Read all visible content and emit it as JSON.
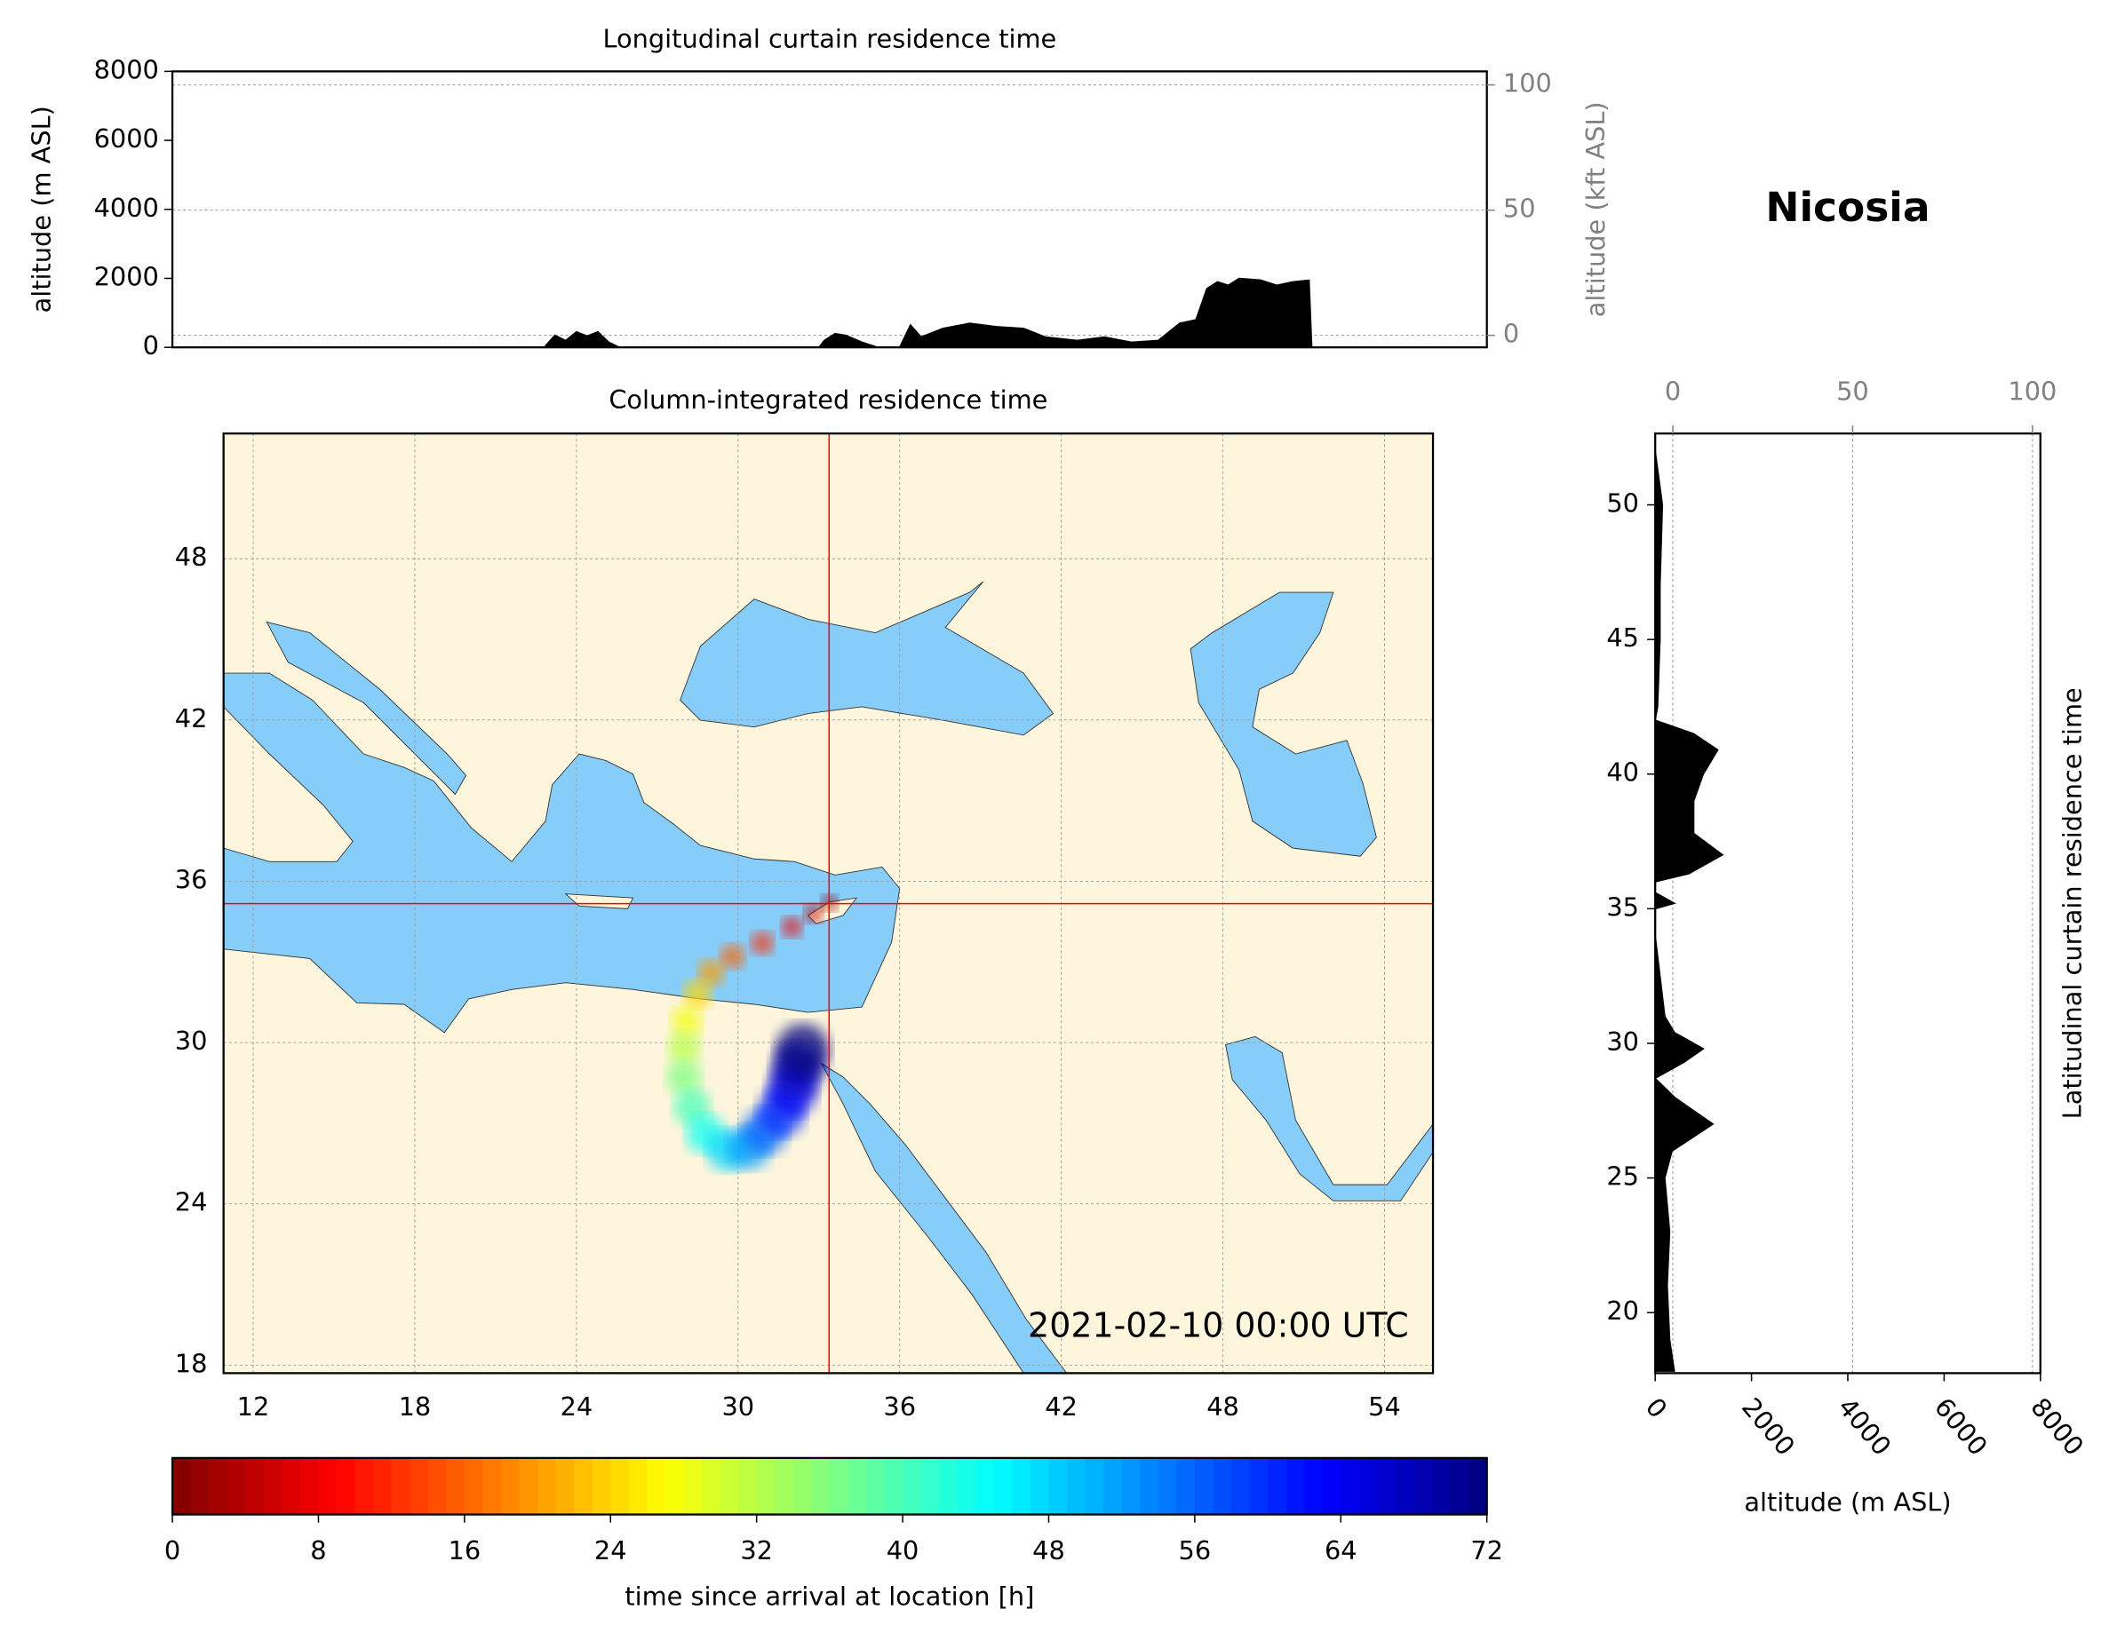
{
  "title": "Nicosia",
  "chart_data": [
    {
      "type": "area",
      "title": "Longitudinal curtain residence time",
      "y_label": "altitude (m ASL)",
      "y2_label": "altitude (kft ASL)",
      "xlim": [
        9,
        57.8
      ],
      "ylim": [
        0,
        8000
      ],
      "yticks": [
        0,
        2000,
        4000,
        6000,
        8000
      ],
      "y2lim": [
        -4.8,
        105.4
      ],
      "y2ticks": [
        0,
        50,
        100
      ],
      "grid": true,
      "x": [
        22.8,
        23.2,
        23.6,
        24,
        24.4,
        24.8,
        25.2,
        25.6,
        33,
        33.2,
        33.6,
        34,
        34.6,
        35.2,
        36,
        36.4,
        36.8,
        37.6,
        38.6,
        39.6,
        40.6,
        41.4,
        42.6,
        43.6,
        44.6,
        45.6,
        46.4,
        47,
        47.4,
        47.8,
        48.2,
        48.6,
        49.4,
        50,
        50.6,
        51.2,
        51.3
      ],
      "series": [
        {
          "color": "#000000",
          "values": [
            0,
            350,
            200,
            450,
            330,
            450,
            150,
            0,
            0,
            200,
            400,
            350,
            150,
            0,
            0,
            650,
            300,
            550,
            700,
            600,
            550,
            300,
            200,
            300,
            150,
            200,
            700,
            800,
            1700,
            1900,
            1800,
            2000,
            1950,
            1800,
            1900,
            1950,
            0
          ]
        }
      ]
    },
    {
      "type": "map",
      "title": "Column-integrated residence time",
      "xlim": [
        10.9,
        55.8
      ],
      "ylim": [
        17.7,
        52.66
      ],
      "xticks": [
        12,
        18,
        24,
        30,
        36,
        42,
        48,
        54
      ],
      "yticks": [
        18,
        24,
        30,
        36,
        42,
        48
      ],
      "grid": true,
      "annotation": "2021-02-10 00:00 UTC",
      "location": {
        "x": 33.38,
        "y": 35.17,
        "color": "#ff0000"
      },
      "x": [
        33.4,
        32.8,
        32.0,
        30.9,
        29.8,
        29.0,
        28.5,
        28.1,
        28.0,
        28.0,
        28.3,
        28.8,
        29.6,
        30.4,
        31.0,
        31.6,
        32.0,
        32.2,
        32.4
      ],
      "y": [
        35.2,
        34.8,
        34.3,
        33.7,
        33.2,
        32.6,
        31.8,
        30.8,
        29.8,
        28.7,
        27.6,
        26.6,
        26.0,
        26.1,
        26.7,
        27.4,
        28.2,
        29.0,
        29.7
      ],
      "values": [
        0,
        4,
        8,
        12,
        16,
        20,
        24,
        28,
        32,
        36,
        40,
        44,
        48,
        52,
        56,
        60,
        64,
        68,
        72
      ]
    },
    {
      "type": "area_h",
      "title": "Latitudinal curtain residence time",
      "x_label": "altitude (m ASL)",
      "xlim": [
        0,
        8000
      ],
      "xticks": [
        0,
        2000,
        4000,
        6000,
        8000
      ],
      "x2lim": [
        -4.9,
        102.2
      ],
      "x2ticks": [
        0,
        50,
        100
      ],
      "grid": true,
      "ylim": [
        17.75,
        52.65
      ],
      "yticks": [
        20,
        25,
        30,
        35,
        40,
        45,
        50
      ],
      "y": [
        17.8,
        19,
        21,
        23,
        25,
        26,
        27,
        28,
        28.7,
        29.3,
        29.8,
        30.4,
        31,
        34,
        35,
        35.2,
        35.6,
        36,
        36.3,
        37,
        37.8,
        39,
        40,
        40.9,
        41.5,
        42,
        42.5,
        45,
        47,
        50,
        52
      ],
      "series": [
        {
          "color": "#000000",
          "values": [
            400,
            300,
            250,
            300,
            200,
            350,
            1200,
            400,
            0,
            600,
            1000,
            400,
            200,
            0,
            0,
            400,
            0,
            0,
            700,
            1400,
            800,
            800,
            1000,
            1300,
            800,
            0,
            50,
            100,
            100,
            150,
            0
          ]
        }
      ]
    },
    {
      "type": "colorbar",
      "x_label": "time since arrival at location [h]",
      "xlim": [
        0,
        72
      ],
      "xticks": [
        0,
        8,
        16,
        24,
        32,
        40,
        48,
        56,
        64,
        72
      ],
      "colormap": "jet_r"
    }
  ]
}
